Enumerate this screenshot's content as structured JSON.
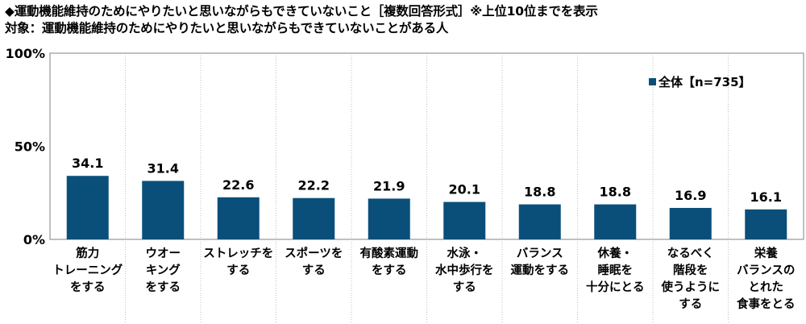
{
  "title": "◆運動機能維持のためにやりたいと思いながらもできていないこと［複数回答形式］※上位10位までを表示",
  "subtitle": "対象：運動機能維持のためにやりたいと思いながらもできていないことがある人",
  "colors": {
    "bar": "#0a4f7a",
    "grid": "#bfbfbf",
    "axis": "#808080",
    "background": "#ffffff"
  },
  "chart_data": {
    "type": "bar",
    "title": "◆運動機能維持のためにやりたいと思いながらもできていないこと［複数回答形式］※上位10位までを表示",
    "subtitle": "対象：運動機能維持のためにやりたいと思いながらもできていないことがある人",
    "categories": [
      [
        "筋力",
        "トレーニング",
        "をする"
      ],
      [
        "ウオー",
        "キング",
        "をする"
      ],
      [
        "ストレッチを",
        "する"
      ],
      [
        "スポーツを",
        "する"
      ],
      [
        "有酸素運動",
        "をする"
      ],
      [
        "水泳・",
        "水中歩行を",
        "する"
      ],
      [
        "バランス",
        "運動をする"
      ],
      [
        "休養・",
        "睡眠を",
        "十分にとる"
      ],
      [
        "なるべく",
        "階段を",
        "使うように",
        "する"
      ],
      [
        "栄養",
        "バランスの",
        "とれた",
        "食事をとる"
      ]
    ],
    "series": [
      {
        "name": "全体【n=735】",
        "values": [
          34.1,
          31.4,
          22.6,
          22.2,
          21.9,
          20.1,
          18.8,
          18.8,
          16.9,
          16.1
        ]
      }
    ],
    "value_labels": [
      "34.1",
      "31.4",
      "22.6",
      "22.2",
      "21.9",
      "20.1",
      "18.8",
      "18.8",
      "16.9",
      "16.1"
    ],
    "y_ticks": [
      0,
      50,
      100
    ],
    "y_tick_labels": [
      "0%",
      "50%",
      "100%"
    ],
    "ylim": [
      0,
      100
    ],
    "xlabel": "",
    "ylabel": "",
    "grid": "vertical-separators",
    "legend_position": "top-right"
  }
}
